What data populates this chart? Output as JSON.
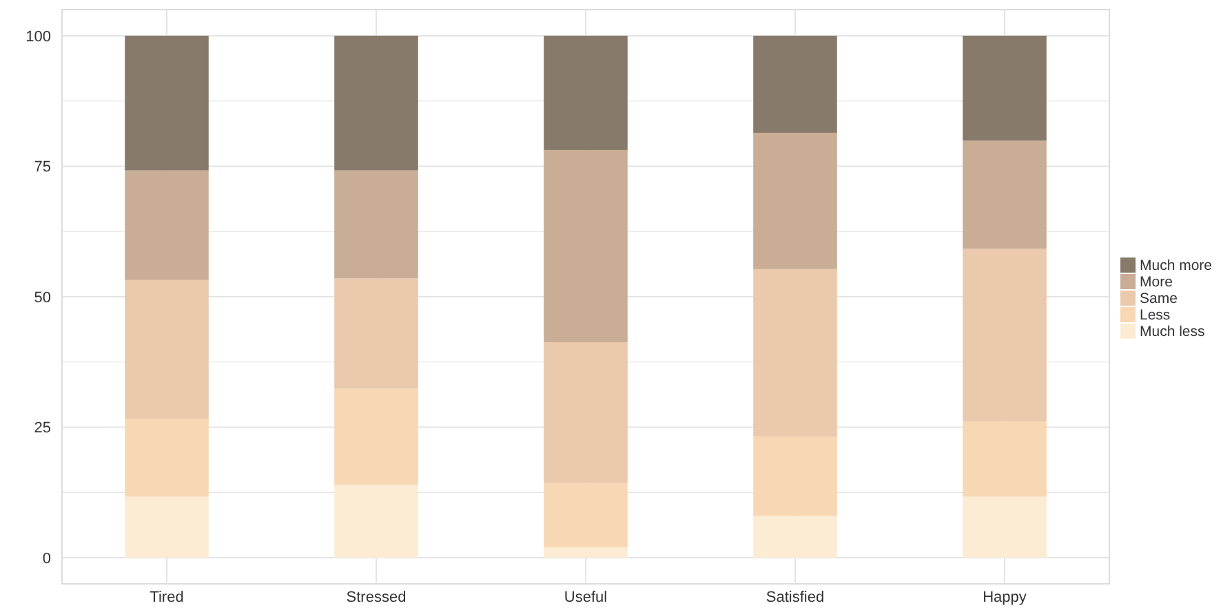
{
  "chart_data": {
    "type": "bar",
    "stacked": true,
    "categories": [
      "Tired",
      "Stressed",
      "Useful",
      "Satisfied",
      "Happy"
    ],
    "series": [
      {
        "name": "Much less",
        "color": "#fcecd4",
        "values": [
          11.7,
          14,
          2,
          8,
          11.7
        ]
      },
      {
        "name": "Less",
        "color": "#f8d7b4",
        "values": [
          14.9,
          18.4,
          12.3,
          15.2,
          14.4
        ]
      },
      {
        "name": "Same",
        "color": "#eac9ac",
        "values": [
          26.6,
          21.1,
          27,
          32.1,
          33.1
        ]
      },
      {
        "name": "More",
        "color": "#c9ad95",
        "values": [
          21,
          20.7,
          36.8,
          26.1,
          20.7
        ]
      },
      {
        "name": "Much more",
        "color": "#887a6a",
        "values": [
          25.8,
          25.8,
          21.9,
          18.6,
          20.1
        ]
      }
    ],
    "ylim": [
      -5,
      105
    ],
    "yticks": [
      0,
      {
        "value": 12.5,
        "label": null
      },
      25,
      {
        "value": 37.5,
        "label": null
      },
      50,
      {
        "value": 62.5,
        "label": null
      },
      75,
      {
        "value": 87.5,
        "label": null
      },
      100
    ],
    "grid": true,
    "legend": "right"
  }
}
